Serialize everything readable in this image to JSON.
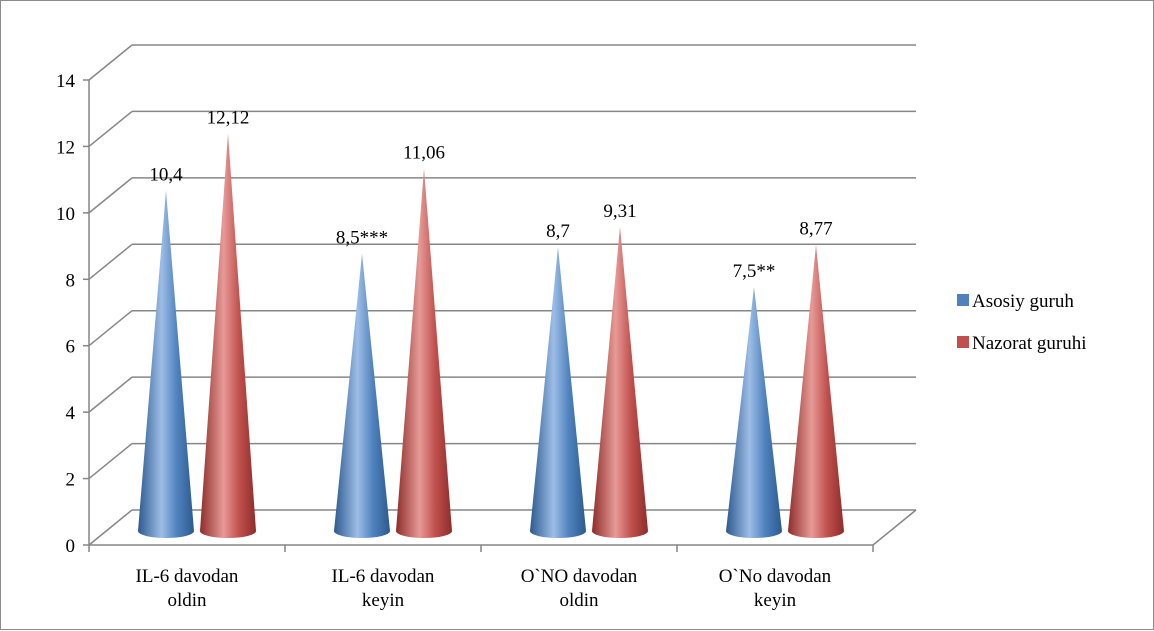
{
  "chart_data": {
    "type": "bar",
    "bar_shape": "cone-3d",
    "categories": [
      [
        "IL-6 davodan",
        "oldin"
      ],
      [
        "IL-6 davodan",
        "keyin"
      ],
      [
        "O`NO davodan",
        "oldin"
      ],
      [
        "O`No davodan",
        "keyin"
      ]
    ],
    "series": [
      {
        "name": "Asosiy guruh",
        "color": "#4f81bd",
        "values": [
          10.4,
          8.5,
          8.7,
          7.5
        ],
        "labels": [
          "10,4",
          "8,5***",
          "8,7",
          "7,5**"
        ]
      },
      {
        "name": "Nazorat guruhi",
        "color": "#c0504d",
        "values": [
          12.12,
          11.06,
          9.31,
          8.77
        ],
        "labels": [
          "12,12",
          "11,06",
          "9,31",
          "8,77"
        ]
      }
    ],
    "y_ticks": [
      "0",
      "2",
      "4",
      "6",
      "8",
      "10",
      "12",
      "14"
    ],
    "ylim": [
      0,
      14
    ],
    "ystep": 2,
    "grid": true,
    "legend_position": "right",
    "title": "",
    "xlabel": "",
    "ylabel": ""
  }
}
